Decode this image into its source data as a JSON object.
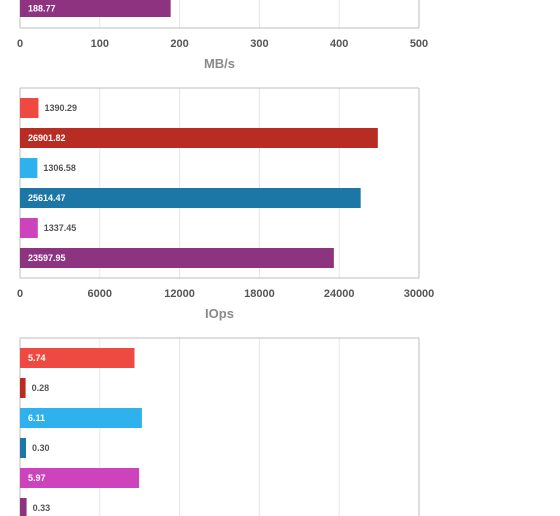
{
  "chart_data": [
    {
      "type": "bar",
      "orientation": "horizontal",
      "xlabel": "MB/s",
      "xlim": [
        0,
        500
      ],
      "xticks": [
        "0",
        "100",
        "200",
        "300",
        "400",
        "500"
      ],
      "grid": true,
      "bars": [
        {
          "value": 188.77,
          "label": "188.77",
          "color": "#8e3380"
        }
      ]
    },
    {
      "type": "bar",
      "orientation": "horizontal",
      "xlabel": "IOps",
      "xlim": [
        0,
        30000
      ],
      "xticks": [
        "0",
        "6000",
        "12000",
        "18000",
        "24000",
        "30000"
      ],
      "grid": true,
      "bars": [
        {
          "value": 1390.29,
          "label": "1390.29",
          "color": "#ef4a41"
        },
        {
          "value": 26901.82,
          "label": "26901.82",
          "color": "#b82c24"
        },
        {
          "value": 1306.58,
          "label": "1306.58",
          "color": "#2eb1ec"
        },
        {
          "value": 25614.47,
          "label": "25614.47",
          "color": "#1d77a6"
        },
        {
          "value": 1337.45,
          "label": "1337.45",
          "color": "#cc43bc"
        },
        {
          "value": 23597.95,
          "label": "23597.95",
          "color": "#8e3380"
        }
      ]
    },
    {
      "type": "bar",
      "orientation": "horizontal",
      "xlim": [
        0,
        20
      ],
      "grid": true,
      "bars": [
        {
          "value": 5.74,
          "label": "5.74",
          "color": "#ef4a41"
        },
        {
          "value": 0.28,
          "label": "0.28",
          "color": "#b82c24"
        },
        {
          "value": 6.11,
          "label": "6.11",
          "color": "#2eb1ec"
        },
        {
          "value": 0.3,
          "label": "0.30",
          "color": "#1d77a6"
        },
        {
          "value": 5.97,
          "label": "5.97",
          "color": "#cc43bc"
        },
        {
          "value": 0.33,
          "label": "0.33",
          "color": "#8e3380"
        }
      ]
    }
  ]
}
